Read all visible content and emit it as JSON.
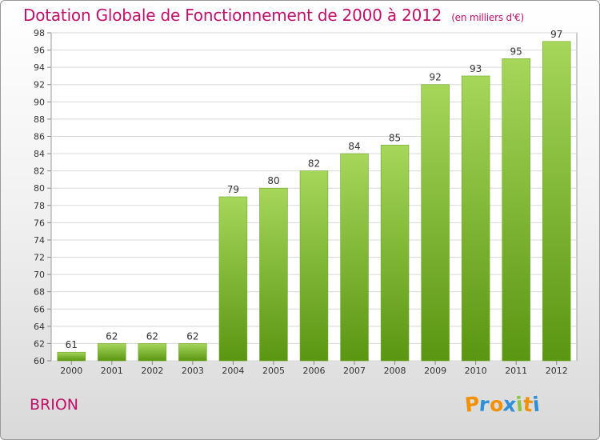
{
  "header": {
    "title": "Dotation Globale de Fonctionnement de 2000 à 2012",
    "unit": "(en milliers d'€)"
  },
  "footer": {
    "town": "BRION",
    "logo": [
      "P",
      "r",
      "o",
      "x",
      "i",
      "t",
      "i"
    ]
  },
  "colors": {
    "bar_top": "#9ed04f",
    "bar_bottom": "#5e9a14",
    "title": "#c0106a"
  },
  "chart_data": {
    "type": "bar",
    "title": "Dotation Globale de Fonctionnement de 2000 à 2012",
    "subtitle": "(en milliers d'€)",
    "categories": [
      "2000",
      "2001",
      "2002",
      "2003",
      "2004",
      "2005",
      "2006",
      "2007",
      "2008",
      "2009",
      "2010",
      "2011",
      "2012"
    ],
    "values": [
      61,
      62,
      62,
      62,
      79,
      80,
      82,
      84,
      85,
      92,
      93,
      95,
      97
    ],
    "ylim": [
      60,
      98
    ],
    "yticks": [
      60,
      62,
      64,
      66,
      68,
      70,
      72,
      74,
      76,
      78,
      80,
      82,
      84,
      86,
      88,
      90,
      92,
      94,
      96,
      98
    ],
    "grid": true,
    "legend": "none"
  }
}
